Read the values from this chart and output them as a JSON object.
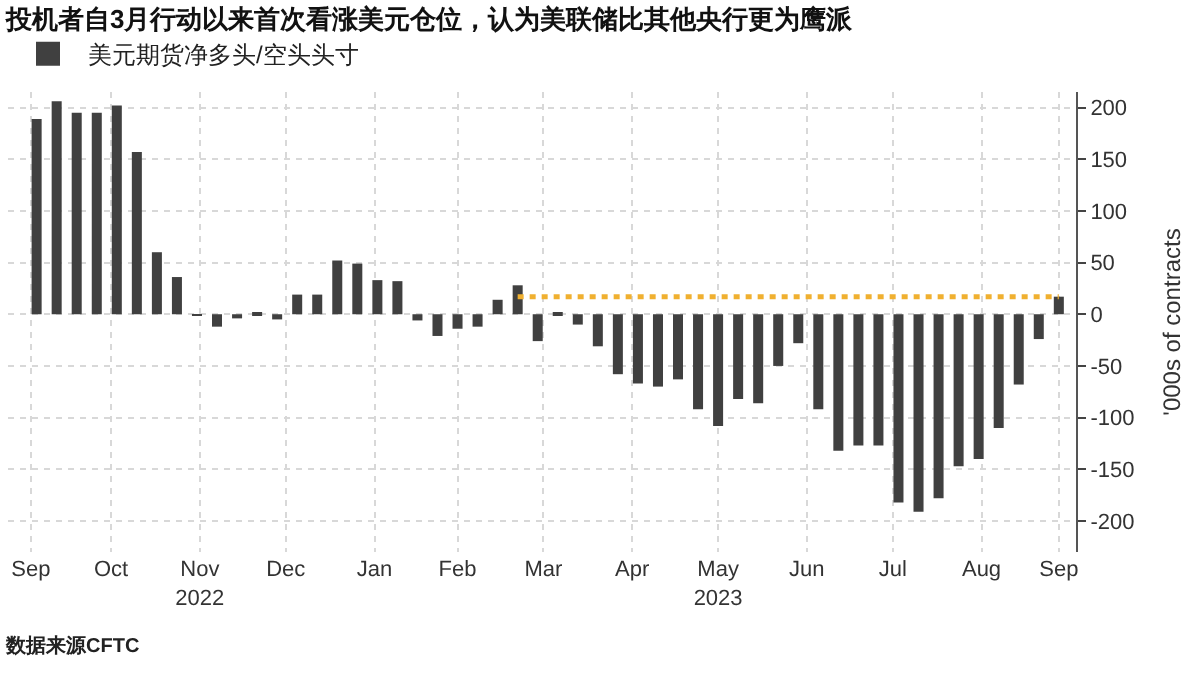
{
  "chart_data": {
    "type": "bar",
    "title": "投机者自3月行动以来首次看涨美元仓位，认为美联储比其他央行更为鹰派",
    "ylabel": "'000s of contracts",
    "x": [
      "2022-09-20",
      "2022-09-27",
      "2022-10-04",
      "2022-10-11",
      "2022-10-18",
      "2022-10-25",
      "2022-11-01",
      "2022-11-08",
      "2022-11-15",
      "2022-11-22",
      "2022-11-29",
      "2022-12-06",
      "2022-12-13",
      "2022-12-20",
      "2022-12-27",
      "2023-01-03",
      "2023-01-10",
      "2023-01-17",
      "2023-01-24",
      "2023-01-31",
      "2023-02-07",
      "2023-02-14",
      "2023-02-21",
      "2023-02-28",
      "2023-03-07",
      "2023-03-14",
      "2023-03-21",
      "2023-03-28",
      "2023-04-04",
      "2023-04-11",
      "2023-04-18",
      "2023-04-25",
      "2023-05-02",
      "2023-05-09",
      "2023-05-16",
      "2023-05-23",
      "2023-05-30",
      "2023-06-06",
      "2023-06-13",
      "2023-06-20",
      "2023-06-27",
      "2023-07-04",
      "2023-07-11",
      "2023-07-18",
      "2023-07-25",
      "2023-08-01",
      "2023-08-08",
      "2023-08-15",
      "2023-08-22",
      "2023-08-29",
      "2023-09-05",
      "2023-09-12"
    ],
    "series": [
      {
        "name": "美元期货净多头/空头头寸",
        "color": "#404040",
        "values": [
          189,
          206,
          195,
          195,
          202,
          157,
          60,
          36,
          -1,
          -12,
          -4,
          2,
          -5,
          19,
          19,
          52,
          49,
          33,
          32,
          -6,
          -21,
          -14,
          -12,
          14,
          28,
          -26,
          2,
          -10,
          -31,
          -58,
          -67,
          -70,
          -63,
          -92,
          -108,
          -82,
          -86,
          -50,
          -28,
          -92,
          -132,
          -127,
          -127,
          -182,
          -191,
          -178,
          -147,
          -140,
          -110,
          -68,
          -24,
          17
        ]
      },
      {
        "type": "line",
        "color": "#f0b030",
        "line_style": "dotted",
        "x": [
          "2023-03-07",
          "2023-09-12"
        ],
        "values": [
          17,
          17
        ]
      }
    ],
    "xlim": [
      "2022-09-10",
      "2023-09-18"
    ],
    "xticks": [
      {
        "value": "2022-09-18",
        "label": "Sep"
      },
      {
        "value": "2022-10-16",
        "label": "Oct"
      },
      {
        "value": "2022-11-16",
        "label": "Nov\n2022"
      },
      {
        "value": "2022-12-16",
        "label": "Dec"
      },
      {
        "value": "2023-01-16",
        "label": "Jan"
      },
      {
        "value": "2023-02-14",
        "label": "Feb"
      },
      {
        "value": "2023-03-16",
        "label": "Mar"
      },
      {
        "value": "2023-04-16",
        "label": "Apr"
      },
      {
        "value": "2023-05-16",
        "label": "May\n2023"
      },
      {
        "value": "2023-06-16",
        "label": "Jun"
      },
      {
        "value": "2023-07-16",
        "label": "Jul"
      },
      {
        "value": "2023-08-16",
        "label": "Aug"
      },
      {
        "value": "2023-09-12",
        "label": "Sep"
      }
    ],
    "ylim": [
      -230,
      215
    ],
    "yticks": [
      -200,
      -150,
      -100,
      -50,
      0,
      50,
      100,
      150,
      200
    ],
    "grid": true,
    "legend": "top left",
    "annotations": [
      "数据来源CFTC"
    ]
  }
}
